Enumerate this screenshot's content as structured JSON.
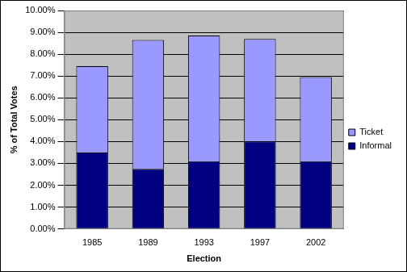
{
  "chart_data": {
    "type": "bar",
    "categories": [
      "1985",
      "1989",
      "1993",
      "1997",
      "2002"
    ],
    "series": [
      {
        "name": "Informal",
        "color": "#000080",
        "values": [
          3.5,
          2.75,
          3.1,
          4.0,
          3.1
        ]
      },
      {
        "name": "Ticket",
        "color": "#9999ff",
        "values": [
          3.95,
          5.9,
          5.75,
          4.7,
          3.85
        ]
      }
    ],
    "x_label": "Election",
    "y_label": "% of Total Votes",
    "ylim": [
      0,
      10
    ],
    "yticks": [
      {
        "value": 0,
        "label": "0.00%"
      },
      {
        "value": 1,
        "label": "1.00%"
      },
      {
        "value": 2,
        "label": "2.00%"
      },
      {
        "value": 3,
        "label": "3.00%"
      },
      {
        "value": 4,
        "label": "4.00%"
      },
      {
        "value": 5,
        "label": "5.00%"
      },
      {
        "value": 6,
        "label": "6.00%"
      },
      {
        "value": 7,
        "label": "7.00%"
      },
      {
        "value": 8,
        "label": "8.00%"
      },
      {
        "value": 9,
        "label": "9.00%"
      },
      {
        "value": 10,
        "label": "10.00%"
      }
    ],
    "stacked": true,
    "grid": true,
    "legend": "right"
  }
}
